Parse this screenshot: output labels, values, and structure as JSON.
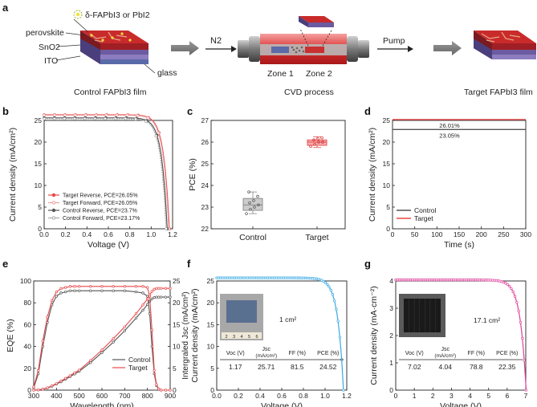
{
  "panel_letters": [
    "a",
    "b",
    "c",
    "d",
    "e",
    "f",
    "g"
  ],
  "panel_a": {
    "layer_labels": [
      "perovskite",
      "SnO2",
      "ITO",
      "glass"
    ],
    "marker_label": "δ-FAPbI3 or PbI2",
    "gas_label": "N2",
    "zone_labels": [
      "Zone 1",
      "Zone 2"
    ],
    "pump_label": "Pump",
    "captions": [
      "Control FAPbI3 film",
      "CVD process",
      "Target FAPbI3 film"
    ]
  },
  "colors": {
    "red": "#e8484a",
    "gray": "#555555",
    "lightred": "#f0a0a0",
    "lightgray": "#aaaaaa",
    "blue": "#39a9e1",
    "magenta": "#e0409a"
  },
  "chart_data": [
    {
      "id": "b",
      "type": "line",
      "xlabel": "Voltage (V)",
      "ylabel": "Current density (mA/cm²)",
      "xlim": [
        0.0,
        1.2
      ],
      "ylim": [
        0,
        25
      ],
      "xticks": [
        "0.0",
        "0.2",
        "0.4",
        "0.6",
        "0.8",
        "1.0",
        "1.2"
      ],
      "yticks": [
        "0",
        "5",
        "10",
        "15",
        "20",
        "25"
      ],
      "legend": [
        "Target Reverse, PCE=26.05%",
        "Target Forward, PCE=26.05%",
        "Control Reverse, PCE=23.7%",
        "Control Forward, PCE=23.17%"
      ],
      "series": [
        {
          "name": "Target Reverse, PCE=26.05%",
          "jsc": 26.3,
          "voc": 1.17,
          "color": "#e8484a"
        },
        {
          "name": "Target Forward, PCE=26.05%",
          "jsc": 26.2,
          "voc": 1.165,
          "color": "#f0a0a0"
        },
        {
          "name": "Control Reverse, PCE=23.7%",
          "jsc": 25.6,
          "voc": 1.15,
          "color": "#555555"
        },
        {
          "name": "Control Forward, PCE=23.17%",
          "jsc": 25.4,
          "voc": 1.14,
          "color": "#aaaaaa"
        }
      ]
    },
    {
      "id": "c",
      "type": "box",
      "ylabel": "PCE (%)",
      "ylim": [
        22,
        27
      ],
      "yticks": [
        "22",
        "23",
        "24",
        "25",
        "26",
        "27"
      ],
      "categories": [
        "Control",
        "Target"
      ],
      "boxes": [
        {
          "name": "Control",
          "q1": 22.85,
          "median": 23.1,
          "q3": 23.4,
          "min": 22.7,
          "max": 23.7,
          "color": "#888888",
          "points": [
            22.7,
            22.9,
            23.0,
            23.1,
            23.2,
            23.3,
            23.5,
            23.7
          ]
        },
        {
          "name": "Target",
          "q1": 25.85,
          "median": 26.0,
          "q3": 26.1,
          "min": 25.75,
          "max": 26.25,
          "color": "#e8484a",
          "points": [
            25.8,
            25.9,
            26.0,
            26.0,
            26.1,
            26.15,
            26.2
          ]
        }
      ]
    },
    {
      "id": "d",
      "type": "line",
      "xlabel": "Time (s)",
      "ylabel": "Current density (mA/cm²)",
      "xlim": [
        0,
        300
      ],
      "ylim": [
        0,
        25
      ],
      "xticks": [
        "0",
        "50",
        "100",
        "150",
        "200",
        "250",
        "300"
      ],
      "yticks": [
        "0",
        "5",
        "10",
        "15",
        "20",
        "25"
      ],
      "legend": [
        "Control",
        "Target"
      ],
      "series": [
        {
          "name": "Control",
          "y": 22.9,
          "color": "#555555"
        },
        {
          "name": "Target",
          "y": 25.2,
          "color": "#e8484a"
        }
      ],
      "annotations": [
        "26.01%",
        "23.05%"
      ]
    },
    {
      "id": "e",
      "type": "line",
      "xlabel": "Wavelength (nm)",
      "ylabel": "EQE (%)",
      "y2label": "Intergraled Jsc (mA/cm²)",
      "xlim": [
        300,
        900
      ],
      "ylim": [
        0,
        100
      ],
      "y2lim": [
        0,
        25
      ],
      "xticks": [
        "300",
        "400",
        "500",
        "600",
        "700",
        "800",
        "900"
      ],
      "yticks": [
        "0",
        "20",
        "40",
        "60",
        "80",
        "100"
      ],
      "y2ticks": [
        "0",
        "5",
        "10",
        "15",
        "20",
        "25"
      ],
      "legend": [
        "Control",
        "Target"
      ],
      "x": [
        300,
        320,
        340,
        360,
        380,
        400,
        420,
        440,
        460,
        480,
        500,
        550,
        600,
        650,
        700,
        750,
        780,
        800,
        810,
        820,
        830,
        840,
        850,
        860,
        880,
        900
      ],
      "series": [
        {
          "name": "Control",
          "color": "#555555",
          "eqe": [
            2,
            15,
            40,
            62,
            78,
            86,
            89,
            90,
            91,
            91,
            91,
            91,
            91,
            91,
            91,
            90,
            89,
            86,
            70,
            40,
            15,
            4,
            1,
            0,
            0,
            0
          ],
          "jsc": [
            0,
            0.05,
            0.2,
            0.5,
            0.9,
            1.4,
            1.9,
            2.5,
            3.1,
            3.7,
            4.3,
            6.3,
            8.6,
            11,
            13.6,
            16.5,
            18.3,
            19.6,
            20.3,
            20.9,
            21.2,
            21.3,
            21.3,
            21.3,
            21.3,
            21.3
          ]
        },
        {
          "name": "Target",
          "color": "#e8484a",
          "eqe": [
            3,
            18,
            45,
            67,
            82,
            90,
            93,
            94,
            95,
            95,
            95,
            95,
            95,
            95,
            95,
            95,
            95,
            94,
            86,
            55,
            18,
            5,
            1,
            0,
            0,
            0
          ],
          "jsc": [
            0,
            0.05,
            0.22,
            0.55,
            1.0,
            1.5,
            2.1,
            2.7,
            3.3,
            4.0,
            4.6,
            6.8,
            9.2,
            11.8,
            14.5,
            17.5,
            19.5,
            20.9,
            21.8,
            22.6,
            23.1,
            23.3,
            23.3,
            23.3,
            23.3,
            23.3
          ]
        }
      ]
    },
    {
      "id": "f",
      "type": "line",
      "xlabel": "Voltage (V)",
      "ylabel": "Current density (mA/cm²)",
      "xlim": [
        0.0,
        1.2
      ],
      "ylim": [
        0,
        25
      ],
      "xticks": [
        "0.0",
        "0.2",
        "0.4",
        "0.6",
        "0.8",
        "1.0",
        "1.2"
      ],
      "yticks": [
        "0",
        "5",
        "10",
        "15",
        "20",
        "25"
      ],
      "series": [
        {
          "name": "",
          "jsc": 25.71,
          "voc": 1.17,
          "color": "#39a9e1"
        }
      ],
      "area_label": "1 cm²",
      "ruler_ticks": [
        "2",
        "3",
        "4",
        "5",
        "6"
      ],
      "table": {
        "headers": [
          "Voc (V)",
          "Jsc (mA/cm²)",
          "FF (%)",
          "PCE (%)"
        ],
        "values": [
          "1.17",
          "25.71",
          "81.5",
          "24.52"
        ]
      }
    },
    {
      "id": "g",
      "type": "line",
      "xlabel": "Voltage (V)",
      "ylabel": "Current density (mA·cm⁻²)",
      "xlim": [
        0,
        7
      ],
      "ylim": [
        0,
        4
      ],
      "xticks": [
        "0",
        "1",
        "2",
        "3",
        "4",
        "5",
        "6",
        "7"
      ],
      "yticks": [
        "0",
        "1",
        "2",
        "3",
        "4"
      ],
      "series": [
        {
          "name": "",
          "jsc": 4.04,
          "voc": 7.02,
          "color": "#e0409a"
        }
      ],
      "area_label": "17.1 cm²",
      "table": {
        "headers": [
          "Voc (V)",
          "Jsc (mA/cm²)",
          "FF (%)",
          "PCE (%)"
        ],
        "values": [
          "7.02",
          "4.04",
          "78.8",
          "22.35"
        ]
      }
    }
  ]
}
